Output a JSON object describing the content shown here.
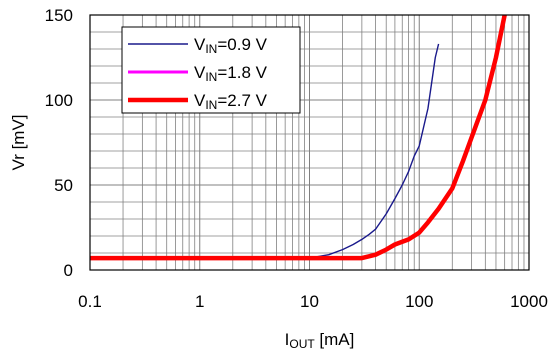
{
  "chart_data": {
    "type": "line",
    "xscale": "log",
    "xlim": [
      0.1,
      1000
    ],
    "ylim": [
      0,
      150
    ],
    "grid": true,
    "x_ticks": [
      "0.1",
      "1",
      "10",
      "100",
      "1000"
    ],
    "y_ticks": [
      "0",
      "50",
      "100",
      "150"
    ],
    "xlabel": {
      "base": "I",
      "sub": "OUT",
      "rest": " [mA]"
    },
    "ylabel": "Vr [mV]",
    "legend_position": "top-left",
    "series": [
      {
        "name": {
          "base": "V",
          "sub": "IN",
          "rest": "=0.9 V"
        },
        "color": "#1a1a8c",
        "width": "thin",
        "points": [
          [
            0.1,
            7
          ],
          [
            1,
            7
          ],
          [
            10,
            7
          ],
          [
            15,
            9
          ],
          [
            20,
            12
          ],
          [
            25,
            15
          ],
          [
            30,
            18
          ],
          [
            35,
            21
          ],
          [
            40,
            24
          ],
          [
            50,
            33
          ],
          [
            60,
            42
          ],
          [
            70,
            50
          ],
          [
            80,
            58
          ],
          [
            90,
            67
          ],
          [
            100,
            73
          ],
          [
            120,
            95
          ],
          [
            140,
            125
          ],
          [
            150,
            133
          ]
        ]
      },
      {
        "name": {
          "base": "V",
          "sub": "IN",
          "rest": "=1.8 V"
        },
        "color": "#ff00ff",
        "width": "medium",
        "points": [
          [
            0.1,
            7
          ],
          [
            1,
            7
          ],
          [
            10,
            7
          ],
          [
            30,
            7
          ],
          [
            40,
            9
          ],
          [
            50,
            12
          ],
          [
            60,
            15
          ],
          [
            80,
            18
          ],
          [
            100,
            22
          ],
          [
            120,
            28
          ],
          [
            150,
            36
          ],
          [
            200,
            48
          ],
          [
            250,
            64
          ],
          [
            300,
            78
          ],
          [
            400,
            100
          ],
          [
            500,
            125
          ],
          [
            600,
            150
          ]
        ]
      },
      {
        "name": {
          "base": "V",
          "sub": "IN",
          "rest": "=2.7 V"
        },
        "color": "#ff0000",
        "width": "thick",
        "points": [
          [
            0.1,
            7
          ],
          [
            1,
            7
          ],
          [
            10,
            7
          ],
          [
            30,
            7
          ],
          [
            40,
            9
          ],
          [
            50,
            12
          ],
          [
            60,
            15
          ],
          [
            80,
            18
          ],
          [
            100,
            22
          ],
          [
            120,
            28
          ],
          [
            150,
            36
          ],
          [
            200,
            48
          ],
          [
            250,
            64
          ],
          [
            300,
            78
          ],
          [
            400,
            100
          ],
          [
            500,
            125
          ],
          [
            600,
            150
          ]
        ]
      }
    ]
  }
}
